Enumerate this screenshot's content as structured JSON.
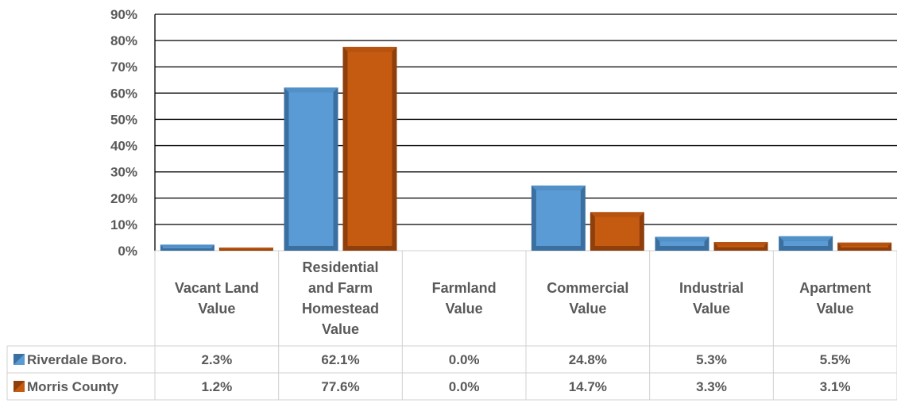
{
  "chart_data": {
    "type": "bar",
    "title": "",
    "xlabel": "",
    "ylabel": "",
    "ylim": [
      0,
      0.9
    ],
    "yticks": [
      0,
      0.1,
      0.2,
      0.3,
      0.4,
      0.5,
      0.6,
      0.7,
      0.8,
      0.9
    ],
    "ytick_labels": [
      "0%",
      "10%",
      "20%",
      "30%",
      "40%",
      "50%",
      "60%",
      "70%",
      "80%",
      "90%"
    ],
    "grid": true,
    "legend": "data-table",
    "categories": [
      [
        "Vacant Land",
        "Value"
      ],
      [
        "Residential",
        "and Farm",
        "Homestead",
        "Value"
      ],
      [
        "Farmland",
        "Value"
      ],
      [
        "Commercial",
        "Value"
      ],
      [
        "Industrial",
        "Value"
      ],
      [
        "Apartment",
        "Value"
      ]
    ],
    "series": [
      {
        "name": "Riverdale Boro.",
        "color": "#5B9BD5",
        "dark": "#3A6FA0",
        "values": [
          0.023,
          0.621,
          0.0,
          0.248,
          0.053,
          0.055
        ],
        "labels": [
          "2.3%",
          "62.1%",
          "0.0%",
          "24.8%",
          "5.3%",
          "5.5%"
        ]
      },
      {
        "name": "Morris County",
        "color": "#C55A11",
        "dark": "#8E3F0B",
        "values": [
          0.012,
          0.776,
          0.0,
          0.147,
          0.033,
          0.031
        ],
        "labels": [
          "1.2%",
          "77.6%",
          "0.0%",
          "14.7%",
          "3.3%",
          "3.1%"
        ]
      }
    ]
  }
}
